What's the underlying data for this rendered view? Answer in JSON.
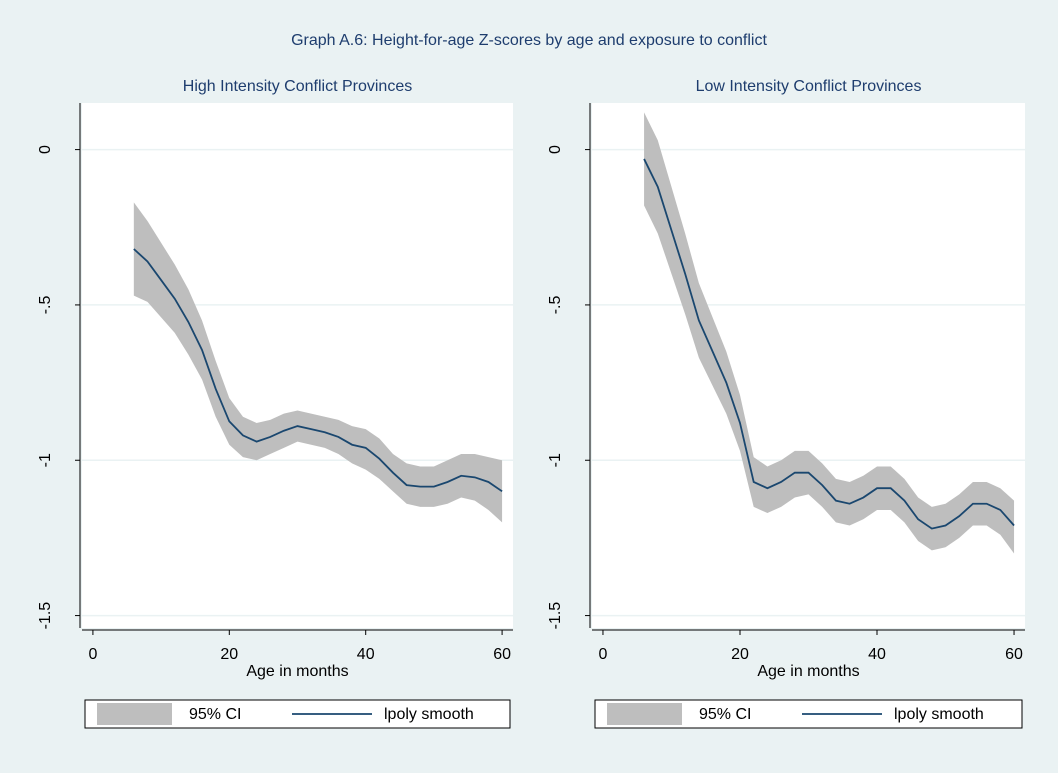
{
  "title": "Graph A.6: Height-for-age Z-scores by age and exposure to conflict",
  "chart_data": [
    {
      "type": "line",
      "title": "High Intensity Conflict Provinces",
      "xlabel": "Age in months",
      "x": [
        6,
        8,
        10,
        12,
        14,
        16,
        18,
        20,
        22,
        24,
        26,
        28,
        30,
        32,
        34,
        36,
        38,
        40,
        42,
        44,
        46,
        48,
        50,
        52,
        54,
        56,
        58,
        60
      ],
      "series": [
        {
          "name": "95% CI",
          "color": "#bebebe",
          "upper": [
            -0.17,
            -0.23,
            -0.3,
            -0.37,
            -0.45,
            -0.55,
            -0.68,
            -0.8,
            -0.86,
            -0.88,
            -0.87,
            -0.85,
            -0.84,
            -0.85,
            -0.86,
            -0.87,
            -0.89,
            -0.9,
            -0.93,
            -0.98,
            -1.01,
            -1.02,
            -1.02,
            -1.0,
            -0.98,
            -0.98,
            -0.99,
            -1.0
          ],
          "lower": [
            -0.47,
            -0.49,
            -0.54,
            -0.59,
            -0.66,
            -0.74,
            -0.86,
            -0.95,
            -0.99,
            -1.0,
            -0.98,
            -0.96,
            -0.94,
            -0.95,
            -0.96,
            -0.98,
            -1.01,
            -1.03,
            -1.06,
            -1.1,
            -1.14,
            -1.15,
            -1.15,
            -1.14,
            -1.12,
            -1.13,
            -1.16,
            -1.2
          ]
        },
        {
          "name": "lpoly smooth",
          "color": "#1a476f",
          "values": [
            -0.32,
            -0.36,
            -0.42,
            -0.48,
            -0.555,
            -0.645,
            -0.77,
            -0.875,
            -0.92,
            -0.94,
            -0.925,
            -0.905,
            -0.89,
            -0.9,
            -0.91,
            -0.925,
            -0.95,
            -0.96,
            -0.995,
            -1.04,
            -1.08,
            -1.085,
            -1.085,
            -1.07,
            -1.05,
            -1.055,
            -1.07,
            -1.1
          ]
        }
      ],
      "xlim": [
        -1.6,
        61.6
      ],
      "ylim": [
        -1.54,
        0.15
      ],
      "xticks": [
        0,
        20,
        40,
        60
      ],
      "yticks": [
        0,
        {
          "value": -0.5,
          "label": "-.5"
        },
        -1,
        {
          "value": -1.5,
          "label": "-1.5"
        }
      ],
      "grid": true
    },
    {
      "type": "line",
      "title": "Low  Intensity Conflict Provinces",
      "xlabel": "Age in months",
      "x": [
        6,
        8,
        10,
        12,
        14,
        16,
        18,
        20,
        22,
        24,
        26,
        28,
        30,
        32,
        34,
        36,
        38,
        40,
        42,
        44,
        46,
        48,
        50,
        52,
        54,
        56,
        58,
        60
      ],
      "series": [
        {
          "name": "95% CI",
          "color": "#bebebe",
          "upper": [
            0.12,
            0.03,
            -0.12,
            -0.27,
            -0.43,
            -0.54,
            -0.65,
            -0.79,
            -0.99,
            -1.02,
            -1.0,
            -0.97,
            -0.97,
            -1.01,
            -1.06,
            -1.07,
            -1.05,
            -1.02,
            -1.02,
            -1.06,
            -1.12,
            -1.15,
            -1.14,
            -1.11,
            -1.07,
            -1.07,
            -1.09,
            -1.13
          ],
          "lower": [
            -0.18,
            -0.27,
            -0.4,
            -0.53,
            -0.67,
            -0.76,
            -0.85,
            -0.97,
            -1.15,
            -1.17,
            -1.15,
            -1.12,
            -1.11,
            -1.15,
            -1.2,
            -1.21,
            -1.19,
            -1.16,
            -1.16,
            -1.2,
            -1.26,
            -1.29,
            -1.28,
            -1.25,
            -1.21,
            -1.21,
            -1.24,
            -1.3
          ]
        },
        {
          "name": "lpoly smooth",
          "color": "#1a476f",
          "values": [
            -0.03,
            -0.12,
            -0.26,
            -0.4,
            -0.55,
            -0.65,
            -0.75,
            -0.88,
            -1.07,
            -1.09,
            -1.07,
            -1.04,
            -1.04,
            -1.08,
            -1.13,
            -1.14,
            -1.12,
            -1.09,
            -1.09,
            -1.13,
            -1.19,
            -1.22,
            -1.21,
            -1.18,
            -1.14,
            -1.14,
            -1.16,
            -1.21
          ]
        }
      ],
      "xlim": [
        -1.6,
        61.6
      ],
      "ylim": [
        -1.54,
        0.15
      ],
      "xticks": [
        0,
        20,
        40,
        60
      ],
      "yticks": [
        0,
        {
          "value": -0.5,
          "label": "-.5"
        },
        -1,
        {
          "value": -1.5,
          "label": "-1.5"
        }
      ],
      "grid": true
    }
  ]
}
